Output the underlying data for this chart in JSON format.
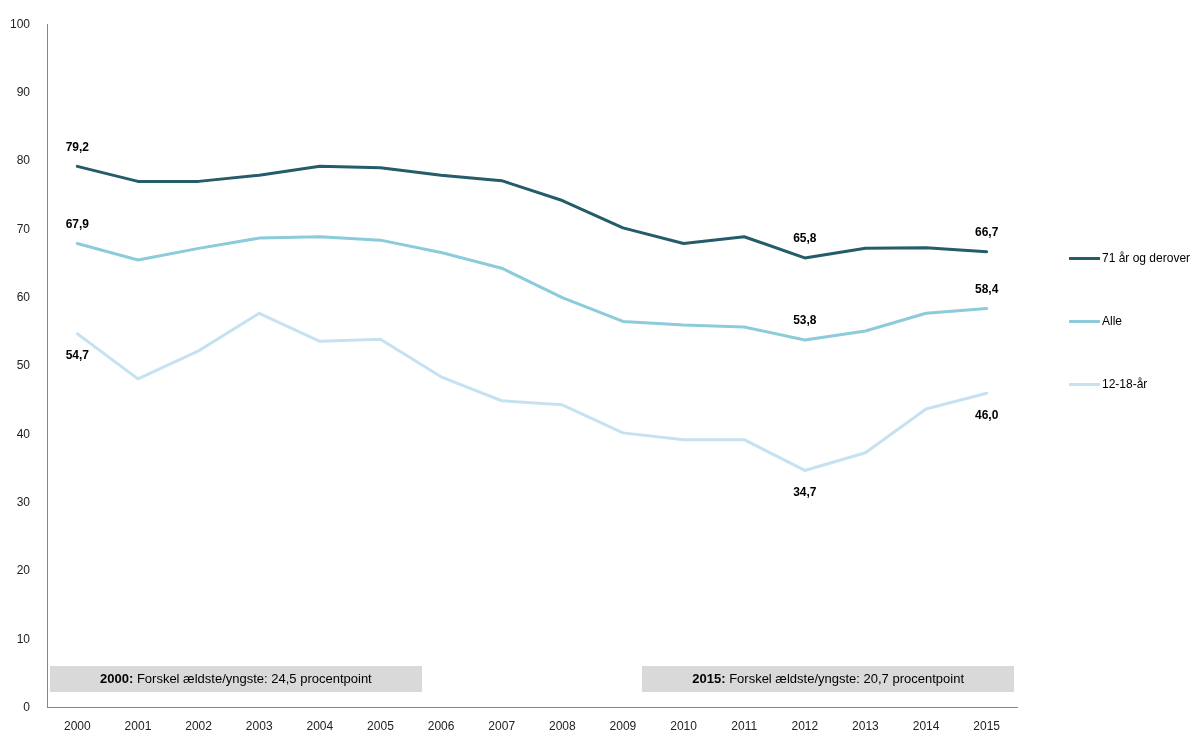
{
  "chart_data": {
    "type": "line",
    "categories": [
      "2000",
      "2001",
      "2002",
      "2003",
      "2004",
      "2005",
      "2006",
      "2007",
      "2008",
      "2009",
      "2010",
      "2011",
      "2012",
      "2013",
      "2014",
      "2015"
    ],
    "series": [
      {
        "name": "71 år og derover",
        "color": "#245c6a",
        "values": [
          79.2,
          77.0,
          77.0,
          77.9,
          79.2,
          79.0,
          77.9,
          77.1,
          74.2,
          70.2,
          67.9,
          68.9,
          65.8,
          67.2,
          67.3,
          66.7
        ],
        "value_labels": [
          "79,2",
          null,
          null,
          null,
          null,
          null,
          null,
          null,
          null,
          null,
          null,
          null,
          "65,8",
          null,
          null,
          "66,7"
        ]
      },
      {
        "name": "Alle",
        "color": "#8ccbda",
        "values": [
          67.9,
          65.5,
          67.2,
          68.7,
          68.9,
          68.4,
          66.6,
          64.3,
          60.0,
          56.5,
          56.0,
          55.7,
          53.8,
          55.1,
          57.7,
          58.4
        ],
        "value_labels": [
          "67,9",
          null,
          null,
          null,
          null,
          null,
          null,
          null,
          null,
          null,
          null,
          null,
          "53,8",
          null,
          null,
          "58,4"
        ]
      },
      {
        "name": "12-18-år",
        "color": "#c6e2f2",
        "values": [
          54.7,
          48.1,
          52.2,
          57.7,
          53.6,
          53.9,
          48.4,
          44.9,
          44.3,
          40.2,
          39.2,
          39.2,
          34.7,
          37.3,
          43.7,
          46.0
        ],
        "value_labels": [
          "54,7",
          null,
          null,
          null,
          null,
          null,
          null,
          null,
          null,
          null,
          null,
          null,
          "34,7",
          null,
          null,
          "46,0"
        ]
      }
    ],
    "ylim": [
      0,
      100
    ],
    "yticks": [
      0,
      10,
      20,
      30,
      40,
      50,
      60,
      70,
      80,
      90,
      100
    ],
    "legend": "right",
    "marker": "none",
    "annotations": [
      "2000: Forskel ældste/yngste: 24,5 procentpoint",
      "2015: Forskel ældste/yngste: 20,7 procentpoint"
    ]
  }
}
